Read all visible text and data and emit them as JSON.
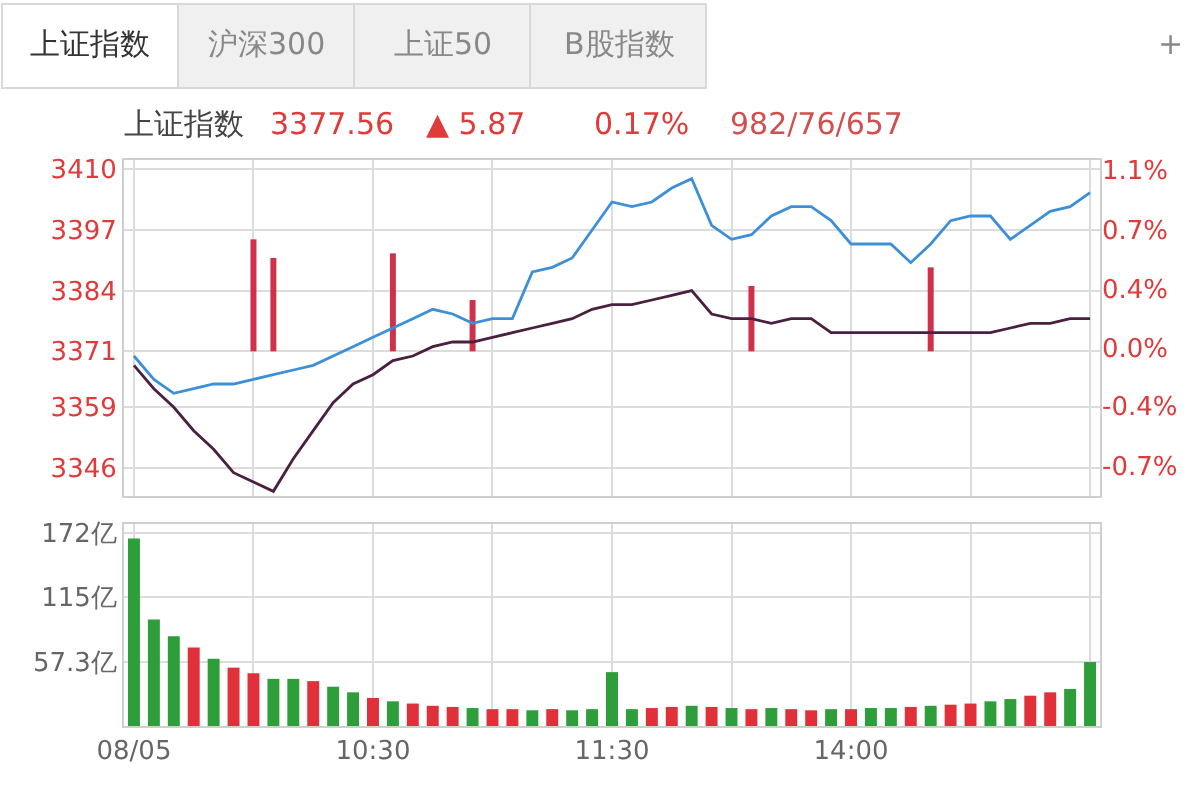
{
  "chart_data": [
    {
      "type": "line",
      "title": "上证指数",
      "annotations": [
        "上证指数",
        "沪深300",
        "上证50",
        "B股指数",
        "+",
        "3377.56",
        "▲ 5.87",
        "0.17%",
        "982/76/657"
      ],
      "categories": [
        null,
        null,
        null,
        null,
        null,
        null,
        null,
        null,
        null,
        null,
        null,
        null,
        null,
        null,
        null,
        null,
        null,
        null,
        null,
        null,
        null,
        null,
        null,
        null,
        null,
        null,
        null,
        null,
        null,
        null,
        null,
        null,
        null,
        null,
        null,
        null,
        null,
        null,
        null,
        null,
        null,
        null,
        null,
        null,
        null,
        null,
        null,
        null,
        null
      ],
      "ylim": [
        3340,
        3412
      ],
      "yticks": [
        3346,
        3359,
        3371,
        3384,
        3397,
        3410
      ],
      "y2lim": [
        -0.94,
        1.19
      ],
      "y2ticks": [
        {
          "value": -0.75,
          "label": "-0.7%"
        },
        {
          "value": -0.37,
          "label": "-0.4%"
        },
        {
          "value": 0,
          "label": "0.0%"
        },
        {
          "value": 0.37,
          "label": "0.4%"
        },
        {
          "value": 0.75,
          "label": "0.7%"
        },
        {
          "value": 1.13,
          "label": "1.1%"
        }
      ],
      "grid": true,
      "tick_labels": "y",
      "series": [
        {
          "type": "line",
          "color": "#3d8fd8",
          "values": [
            3370,
            3365,
            3362,
            3363,
            3364,
            3364,
            3365,
            3366,
            3367,
            3368,
            3370,
            3372,
            3374,
            3376,
            3378,
            3380,
            3379,
            3377,
            3378,
            3378,
            3388,
            3389,
            3391,
            3397,
            3403,
            3402,
            3403,
            3406,
            3408,
            3398,
            3395,
            3396,
            3400,
            3402,
            3402,
            3399,
            3394,
            3394,
            3394,
            3390,
            3394,
            3399,
            3400,
            3400,
            3395,
            3398,
            3401,
            3402,
            3405
          ]
        },
        {
          "type": "line",
          "color": "#4a2040",
          "values": [
            3368,
            3363,
            3359,
            3354,
            3350,
            3345,
            3343,
            3341,
            3348,
            3354,
            3360,
            3364,
            3366,
            3369,
            3370,
            3372,
            3373,
            3373,
            3374,
            3375,
            3376,
            3377,
            3378,
            3380,
            3381,
            3381,
            3382,
            3383,
            3384,
            3379,
            3378,
            3378,
            3377,
            3378,
            3378,
            3375,
            3375,
            3375,
            3375,
            3375,
            3375,
            3375,
            3375,
            3375,
            3376,
            3377,
            3377,
            3378,
            3378
          ]
        },
        {
          "type": "bar",
          "color": "#d0304a",
          "base": [
            null,
            null,
            null,
            null,
            null,
            null,
            3371,
            3371,
            null,
            null,
            null,
            null,
            null,
            3371,
            null,
            null,
            null,
            3371,
            null,
            null,
            null,
            null,
            null,
            null,
            null,
            null,
            null,
            null,
            null,
            null,
            null,
            3371,
            null,
            null,
            null,
            null,
            null,
            null,
            null,
            null,
            3371,
            null,
            null,
            null,
            null,
            null,
            null,
            null,
            null
          ],
          "values": [
            null,
            null,
            null,
            null,
            null,
            null,
            24,
            20,
            null,
            null,
            null,
            null,
            null,
            21,
            null,
            null,
            null,
            11,
            null,
            null,
            null,
            null,
            null,
            null,
            null,
            null,
            null,
            null,
            null,
            null,
            null,
            14,
            null,
            null,
            null,
            null,
            null,
            null,
            null,
            null,
            18,
            null,
            null,
            null,
            null,
            null,
            null,
            null,
            null
          ]
        }
      ]
    },
    {
      "type": "bar",
      "categories": [
        "08/05",
        null,
        null,
        null,
        null,
        null,
        null,
        null,
        null,
        null,
        null,
        null,
        "10:30",
        null,
        null,
        null,
        null,
        null,
        null,
        null,
        null,
        null,
        null,
        null,
        "11:30",
        null,
        null,
        null,
        null,
        null,
        null,
        null,
        null,
        null,
        null,
        null,
        "14:00",
        null,
        null,
        null,
        null,
        null,
        null,
        null,
        null,
        null,
        null,
        null,
        null
      ],
      "ylim": [
        0,
        180
      ],
      "yticks": [
        {
          "value": 57.3,
          "label": "57.3亿"
        },
        {
          "value": 115,
          "label": "115亿"
        },
        {
          "value": 172,
          "label": "172亿"
        }
      ],
      "grid": true,
      "values": [
        167,
        95,
        80,
        70,
        60,
        52,
        47,
        42,
        42,
        40,
        35,
        30,
        25,
        22,
        20,
        18,
        17,
        16,
        15,
        15,
        14,
        15,
        14,
        15,
        48,
        15,
        16,
        17,
        18,
        17,
        16,
        15,
        16,
        15,
        14,
        15,
        15,
        16,
        16,
        17,
        18,
        19,
        20,
        22,
        24,
        27,
        30,
        33,
        57
      ],
      "colors": [
        "#2e9e3a",
        "#2e9e3a",
        "#2e9e3a",
        "#e0303a",
        "#2e9e3a",
        "#e0303a",
        "#e0303a",
        "#2e9e3a",
        "#2e9e3a",
        "#e0303a",
        "#2e9e3a",
        "#2e9e3a",
        "#e0303a",
        "#2e9e3a",
        "#e0303a",
        "#e0303a",
        "#e0303a",
        "#2e9e3a",
        "#e0303a",
        "#e0303a",
        "#2e9e3a",
        "#e0303a",
        "#2e9e3a",
        "#2e9e3a",
        "#2e9e3a",
        "#2e9e3a",
        "#e0303a",
        "#e0303a",
        "#2e9e3a",
        "#e0303a",
        "#2e9e3a",
        "#e0303a",
        "#2e9e3a",
        "#e0303a",
        "#e0303a",
        "#2e9e3a",
        "#e0303a",
        "#2e9e3a",
        "#2e9e3a",
        "#e0303a",
        "#2e9e3a",
        "#e0303a",
        "#e0303a",
        "#2e9e3a",
        "#2e9e3a",
        "#e0303a",
        "#e0303a",
        "#2e9e3a",
        "#2e9e3a"
      ]
    }
  ]
}
